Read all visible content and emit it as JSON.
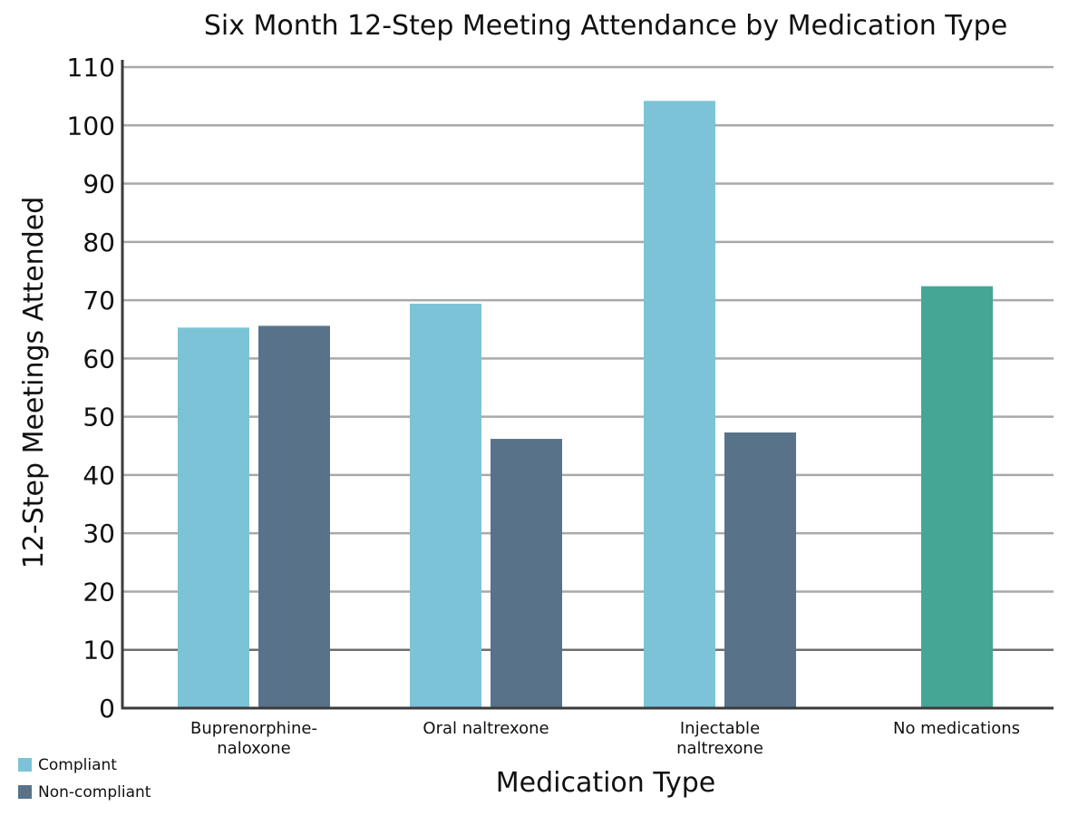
{
  "chart_data": {
    "type": "bar",
    "title": "Six Month 12-Step Meeting Attendance by Medication Type",
    "xlabel": "Medication Type",
    "ylabel": "12-Step Meetings Attended",
    "ylim": [
      0,
      110
    ],
    "yticks": [
      0,
      10,
      20,
      30,
      40,
      50,
      60,
      70,
      80,
      90,
      100,
      110
    ],
    "grid": true,
    "legend_position": "bottom-left",
    "categories": [
      [
        "Buprenorphine-",
        "naloxone"
      ],
      [
        "Oral naltrexone"
      ],
      [
        "Injectable",
        "naltrexone"
      ],
      [
        "No medications"
      ]
    ],
    "series": [
      {
        "name": "Compliant",
        "color": "#7dc3d8",
        "values": [
          65.3,
          69.4,
          104.2,
          null
        ]
      },
      {
        "name": "Non-compliant",
        "color": "#587389",
        "values": [
          65.6,
          46.2,
          47.3,
          null
        ]
      },
      {
        "color": "#45a695",
        "values": [
          null,
          null,
          null,
          72.4
        ]
      }
    ]
  }
}
